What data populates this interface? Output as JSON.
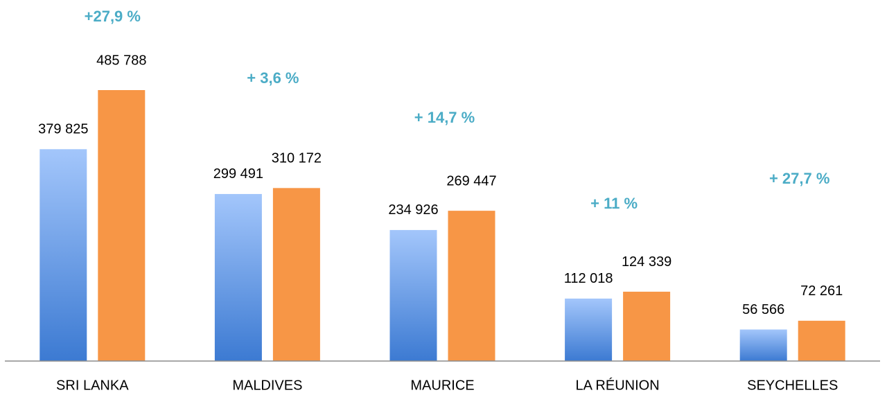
{
  "chart_data": {
    "type": "bar",
    "categories": [
      "SRI LANKA",
      "MALDIVES",
      "MAURICE",
      "LA RÉUNION",
      "SEYCHELLES"
    ],
    "series": [
      {
        "gradient": [
          "#a3c6fb",
          "#3c7ad2"
        ],
        "values": [
          379825,
          299491,
          234926,
          112018,
          56566
        ],
        "value_labels": [
          "379 825",
          "299 491",
          "234 926",
          "112 018",
          "56 566"
        ]
      },
      {
        "color": "#f79646",
        "values": [
          485788,
          310172,
          269447,
          124339,
          72261
        ],
        "value_labels": [
          "485 788",
          "310 172",
          "269 447",
          "124 339",
          "72 261"
        ]
      }
    ],
    "annotations": [
      "+27,9 %",
      "+ 3,6 %",
      "+ 14,7 %",
      "+ 11 %",
      "+ 27,7 %"
    ],
    "annotation_color": "#4bacc6"
  }
}
